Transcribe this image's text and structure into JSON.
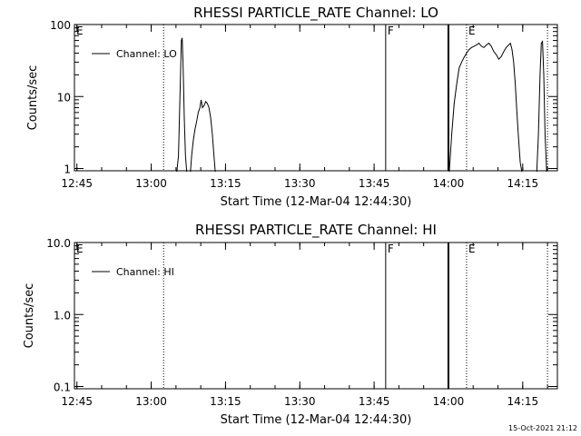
{
  "footer": "15-Oct-2021 21:12",
  "chart_data": [
    {
      "type": "line",
      "title": "RHESSI PARTICLE_RATE Channel: LO",
      "xlabel": "Start Time (12-Mar-04 12:44:30)",
      "ylabel": "Counts/sec",
      "yscale": "log",
      "ylim": [
        0.93,
        100
      ],
      "xlim": [
        "12:44:30",
        "14:22:00"
      ],
      "xticks": [
        "12:45",
        "13:00",
        "13:15",
        "13:30",
        "13:45",
        "14:00",
        "14:15"
      ],
      "yticks": [
        {
          "value": 1,
          "label": "1"
        },
        {
          "value": 10,
          "label": "10"
        },
        {
          "value": 100,
          "label": "100"
        }
      ],
      "legend": {
        "position": "top-left",
        "entries": [
          "Channel: LO"
        ]
      },
      "series": [
        {
          "name": "Channel: LO",
          "segments": [
            [
              [
                "13:05:10",
                0.9
              ],
              [
                "13:05:30",
                1.5
              ],
              [
                "13:05:50",
                12
              ],
              [
                "13:06:05",
                60
              ],
              [
                "13:06:15",
                65
              ],
              [
                "13:06:25",
                30
              ],
              [
                "13:06:40",
                5
              ],
              [
                "13:06:55",
                1.5
              ],
              [
                "13:07:10",
                0.9
              ]
            ],
            [
              [
                "13:07:55",
                0.9
              ],
              [
                "13:08:10",
                1.5
              ],
              [
                "13:08:30",
                2.5
              ],
              [
                "13:08:50",
                3.5
              ],
              [
                "13:09:10",
                4.5
              ],
              [
                "13:09:30",
                6
              ],
              [
                "13:09:50",
                7
              ],
              [
                "13:10:05",
                9
              ],
              [
                "13:10:20",
                7
              ],
              [
                "13:10:40",
                7.5
              ],
              [
                "13:11:00",
                8.5
              ],
              [
                "13:11:20",
                8
              ],
              [
                "13:11:40",
                7
              ],
              [
                "13:12:00",
                5
              ],
              [
                "13:12:20",
                3
              ],
              [
                "13:12:40",
                1.5
              ],
              [
                "13:12:55",
                0.9
              ]
            ],
            [
              [
                "14:00:10",
                0.9
              ],
              [
                "14:00:40",
                3
              ],
              [
                "14:01:10",
                8
              ],
              [
                "14:01:40",
                15
              ],
              [
                "14:02:10",
                25
              ],
              [
                "14:02:40",
                30
              ],
              [
                "14:03:10",
                35
              ],
              [
                "14:03:40",
                40
              ],
              [
                "14:04:10",
                45
              ],
              [
                "14:04:40",
                48
              ],
              [
                "14:05:10",
                50
              ],
              [
                "14:05:40",
                52
              ],
              [
                "14:06:10",
                55
              ],
              [
                "14:06:40",
                50
              ],
              [
                "14:07:10",
                48
              ],
              [
                "14:07:40",
                52
              ],
              [
                "14:08:10",
                55
              ],
              [
                "14:08:40",
                50
              ],
              [
                "14:09:10",
                42
              ],
              [
                "14:09:40",
                38
              ],
              [
                "14:10:10",
                33
              ],
              [
                "14:10:40",
                36
              ],
              [
                "14:11:10",
                42
              ],
              [
                "14:11:40",
                48
              ],
              [
                "14:12:10",
                52
              ],
              [
                "14:12:30",
                55
              ],
              [
                "14:12:50",
                45
              ],
              [
                "14:13:10",
                30
              ],
              [
                "14:13:30",
                15
              ],
              [
                "14:13:50",
                6
              ],
              [
                "14:14:10",
                2.5
              ],
              [
                "14:14:30",
                1.2
              ],
              [
                "14:14:50",
                0.9
              ]
            ],
            [
              [
                "14:17:50",
                0.9
              ],
              [
                "14:18:10",
                3
              ],
              [
                "14:18:30",
                20
              ],
              [
                "14:18:45",
                55
              ],
              [
                "14:19:00",
                58
              ],
              [
                "14:19:15",
                20
              ],
              [
                "14:19:30",
                3
              ],
              [
                "14:19:50",
                0.9
              ]
            ]
          ]
        }
      ],
      "markers": [
        {
          "label": "E",
          "time": "12:44:30",
          "style": "none"
        },
        {
          "label": "",
          "time": "13:02:30",
          "style": "dotted"
        },
        {
          "label": "F",
          "time": "13:47:20",
          "style": "solid"
        },
        {
          "label": "",
          "time": "14:00:00",
          "style": "solid-thick"
        },
        {
          "label": "E",
          "time": "14:03:40",
          "style": "dotted"
        },
        {
          "label": "",
          "time": "14:20:00",
          "style": "dotted"
        }
      ]
    },
    {
      "type": "line",
      "title": "RHESSI PARTICLE_RATE Channel: HI",
      "xlabel": "Start Time (12-Mar-04 12:44:30)",
      "ylabel": "Counts/sec",
      "yscale": "log",
      "ylim": [
        0.093,
        10
      ],
      "xlim": [
        "12:44:30",
        "14:22:00"
      ],
      "xticks": [
        "12:45",
        "13:00",
        "13:15",
        "13:30",
        "13:45",
        "14:00",
        "14:15"
      ],
      "yticks": [
        {
          "value": 0.1,
          "label": "0.1"
        },
        {
          "value": 1,
          "label": "1.0"
        },
        {
          "value": 10,
          "label": "10.0"
        }
      ],
      "legend": {
        "position": "top-left",
        "entries": [
          "Channel: HI"
        ]
      },
      "series": [
        {
          "name": "Channel: HI",
          "segments": []
        }
      ],
      "markers": [
        {
          "label": "E",
          "time": "12:44:30",
          "style": "none"
        },
        {
          "label": "",
          "time": "13:02:30",
          "style": "dotted"
        },
        {
          "label": "F",
          "time": "13:47:20",
          "style": "solid"
        },
        {
          "label": "",
          "time": "14:00:00",
          "style": "solid-thick"
        },
        {
          "label": "E",
          "time": "14:03:40",
          "style": "dotted"
        },
        {
          "label": "",
          "time": "14:20:00",
          "style": "dotted"
        }
      ]
    }
  ]
}
